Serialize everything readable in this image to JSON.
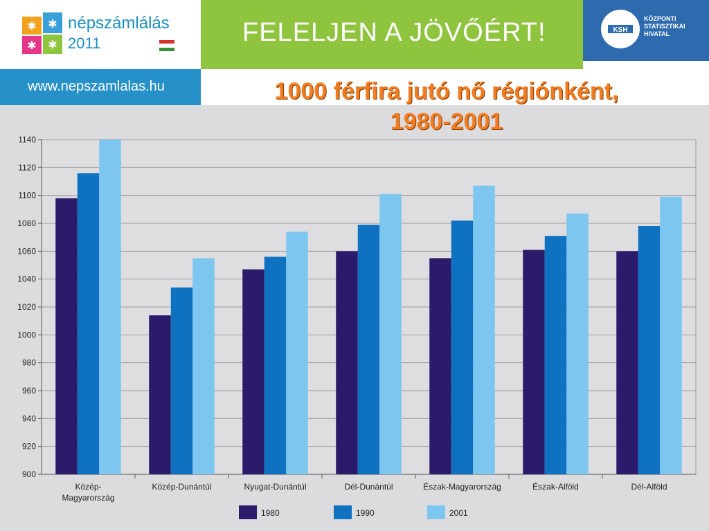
{
  "header": {
    "logo_line1": "népszámlálás",
    "logo_line2": "2011",
    "slogan": "FELELJEN A JÖVŐÉRT!",
    "url": "www.nepszamlalas.hu",
    "ksh_abbrev": "KSH",
    "ksh_lines": [
      "KÖZPONTI",
      "STATISZTIKAI",
      "HIVATAL"
    ]
  },
  "colors": {
    "s1980": "#2c1b6b",
    "s1990": "#0f72c0",
    "s2001": "#7cc6f0",
    "green": "#8fc43f",
    "blue": "#2e6aae",
    "title": "#f47c20"
  },
  "chart_data": {
    "type": "bar",
    "title_line1": "1000 férfira jutó nő régiónként,",
    "title_line2": "1980-2001",
    "categories": [
      "Közép-\nMagyarország",
      "Közép-Dunántúl",
      "Nyugat-Dunántúl",
      "Dél-Dunántúl",
      "Észak-Magyarország",
      "Észak-Alföld",
      "Dél-Alföld"
    ],
    "series": [
      {
        "name": "1980",
        "values": [
          1098,
          1014,
          1047,
          1060,
          1055,
          1061,
          1060
        ]
      },
      {
        "name": "1990",
        "values": [
          1116,
          1034,
          1056,
          1079,
          1082,
          1071,
          1078
        ]
      },
      {
        "name": "2001",
        "values": [
          1140,
          1055,
          1074,
          1101,
          1107,
          1087,
          1099
        ]
      }
    ],
    "ylim": [
      900,
      1140
    ],
    "yticks": [
      900,
      920,
      940,
      960,
      980,
      1000,
      1020,
      1040,
      1060,
      1080,
      1100,
      1120,
      1140
    ],
    "grid": true,
    "legend_position": "bottom"
  }
}
